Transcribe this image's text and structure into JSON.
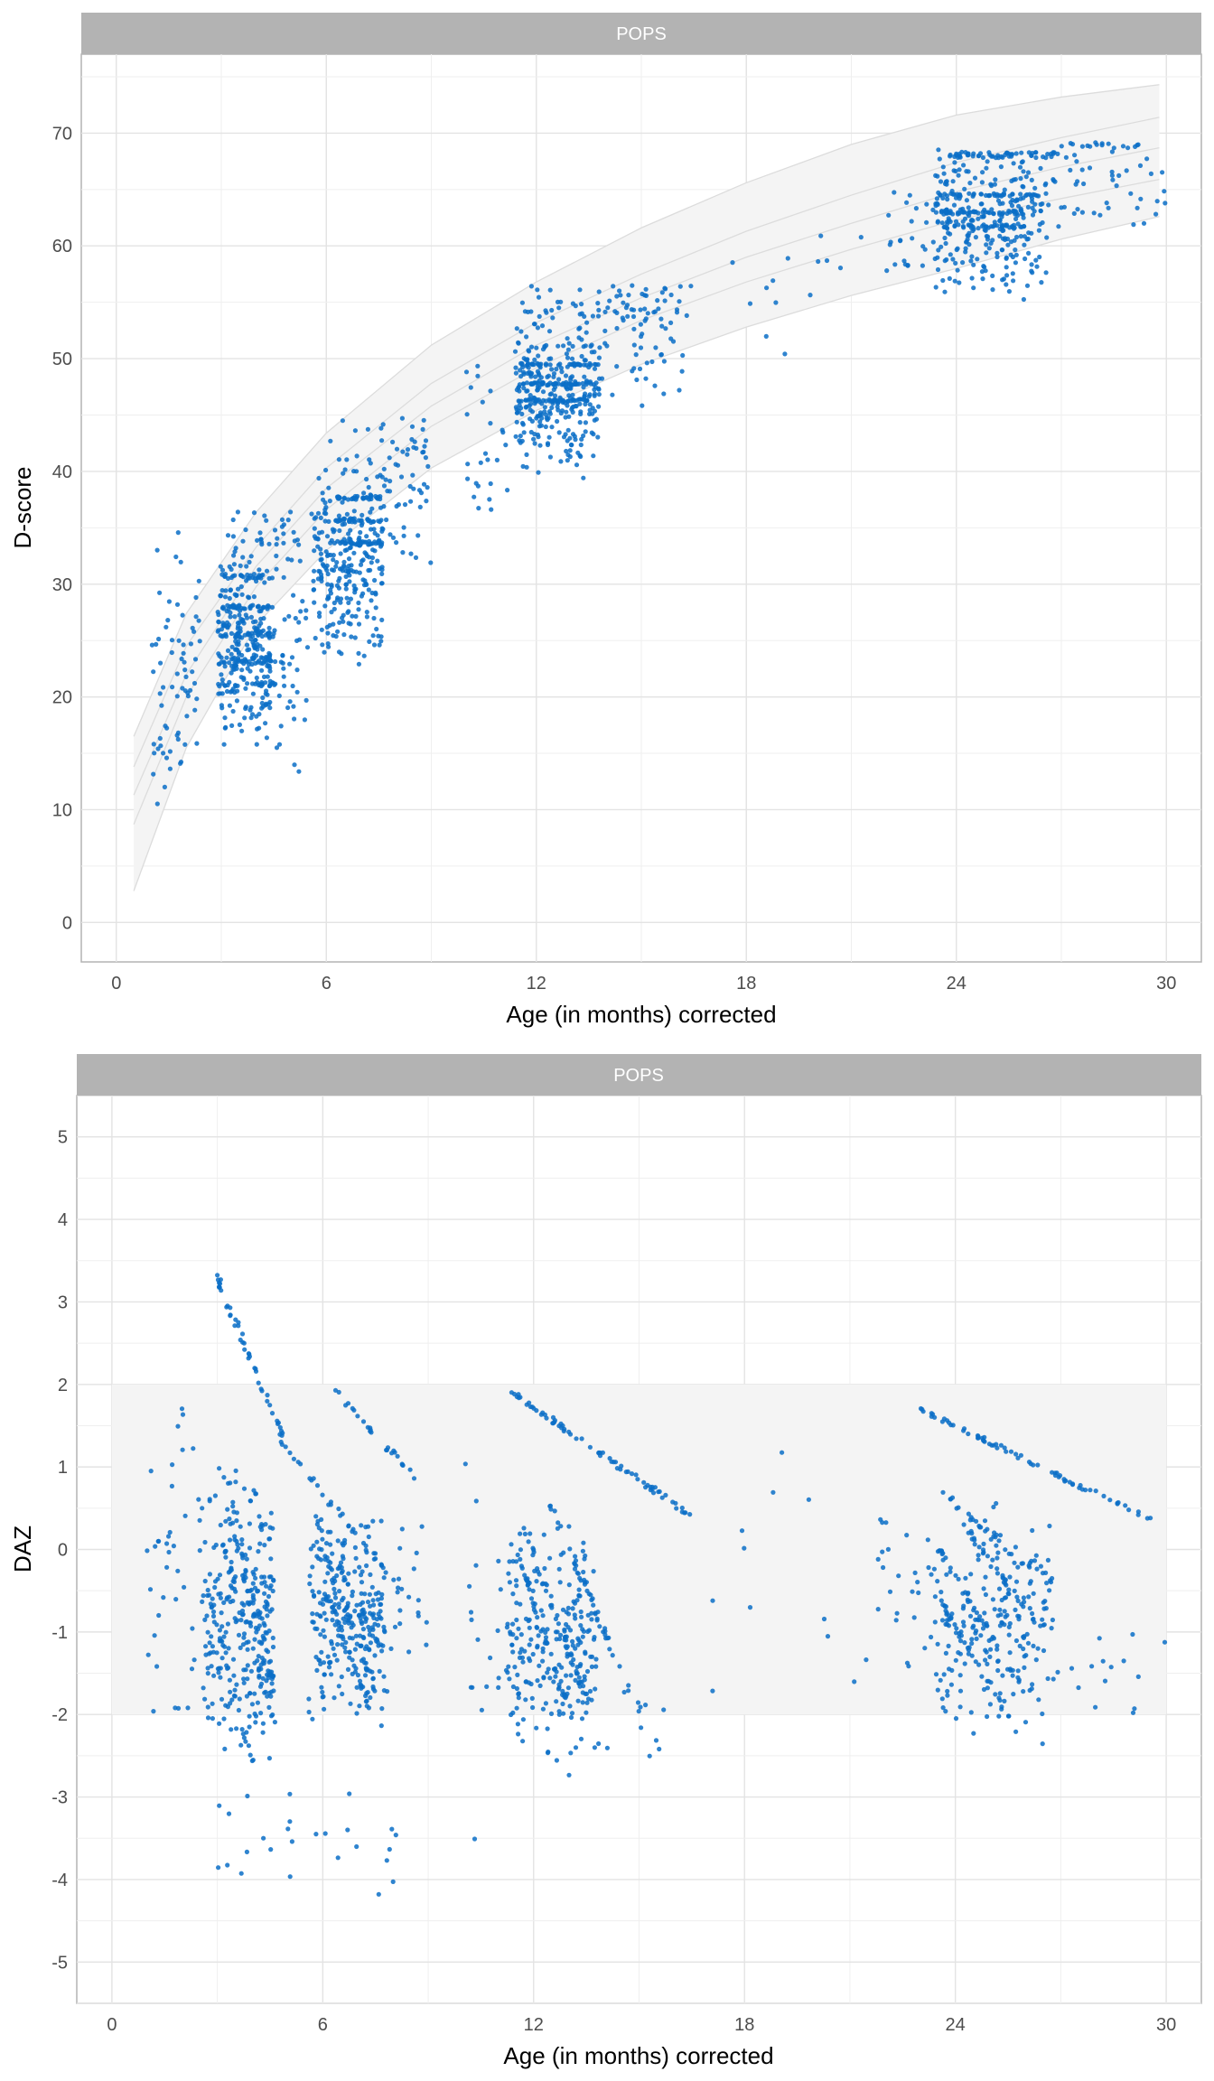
{
  "chart_data": [
    {
      "type": "scatter",
      "strip_label": "POPS",
      "xlabel": "Age (in months) corrected",
      "ylabel": "D-score",
      "xlim": [
        -1,
        31
      ],
      "ylim": [
        -3.5,
        77
      ],
      "x_ticks": [
        0,
        6,
        12,
        18,
        24,
        30
      ],
      "y_ticks": [
        0,
        10,
        20,
        30,
        40,
        50,
        60,
        70
      ],
      "grid": true,
      "point_color": "#0a6fc7",
      "reference_band": {
        "x": [
          0.5,
          2,
          4,
          6,
          9,
          12,
          15,
          18,
          21,
          24,
          27,
          29.8
        ],
        "lines": [
          [
            2.8,
            15.5,
            26.4,
            33.0,
            40.3,
            45.4,
            49.5,
            52.8,
            55.6,
            58.0,
            60.6,
            62.6
          ],
          [
            8.7,
            20.0,
            29.8,
            36.6,
            44.0,
            49.2,
            53.4,
            56.8,
            59.7,
            62.3,
            64.2,
            65.9
          ],
          [
            11.3,
            22.0,
            31.6,
            38.5,
            45.8,
            51.2,
            55.4,
            59.0,
            62.0,
            64.8,
            67.0,
            68.7
          ],
          [
            13.8,
            24.5,
            33.3,
            40.3,
            47.8,
            53.2,
            57.5,
            61.3,
            64.5,
            67.4,
            69.6,
            71.4
          ],
          [
            16.5,
            27.4,
            36.4,
            43.4,
            51.2,
            56.8,
            61.6,
            65.6,
            69.0,
            71.6,
            73.2,
            74.3
          ]
        ]
      },
      "clusters": [
        {
          "x": [
            1.0,
            2.4
          ],
          "y": [
            7,
            35
          ],
          "n": 70
        },
        {
          "x": [
            2.9,
            4.4
          ],
          "y": [
            15,
            34
          ],
          "n": 260
        },
        {
          "x": [
            4.5,
            5.5
          ],
          "y": [
            11,
            38
          ],
          "n": 45
        },
        {
          "x": [
            5.6,
            7.6
          ],
          "y": [
            22,
            41
          ],
          "n": 260
        },
        {
          "x": [
            7.6,
            9.0
          ],
          "y": [
            30,
            46
          ],
          "n": 40
        },
        {
          "x": [
            10.0,
            11.2
          ],
          "y": [
            33,
            50
          ],
          "n": 25
        },
        {
          "x": [
            11.4,
            13.8
          ],
          "y": [
            39,
            55
          ],
          "n": 300
        },
        {
          "x": [
            13.8,
            16.2
          ],
          "y": [
            45,
            57
          ],
          "n": 45
        },
        {
          "x": [
            17.2,
            21.5
          ],
          "y": [
            50,
            65
          ],
          "n": 14
        },
        {
          "x": [
            22.0,
            23.4
          ],
          "y": [
            57,
            66
          ],
          "n": 25
        },
        {
          "x": [
            23.4,
            26.6
          ],
          "y": [
            55,
            69
          ],
          "n": 280
        },
        {
          "x": [
            26.6,
            30.0
          ],
          "y": [
            60,
            70
          ],
          "n": 45
        }
      ],
      "bands": [
        {
          "x": [
            3.0,
            6.0
          ],
          "y": [
            33.5,
            36.5
          ],
          "n": 30
        },
        {
          "x": [
            3.0,
            4.5
          ],
          "y": [
            30.5,
            30.9
          ],
          "n": 25
        },
        {
          "x": [
            3.0,
            4.5
          ],
          "y": [
            27.8,
            28.2
          ],
          "n": 25
        },
        {
          "x": [
            3.0,
            4.5
          ],
          "y": [
            25.3,
            25.7
          ],
          "n": 25
        },
        {
          "x": [
            2.8,
            4.6
          ],
          "y": [
            23.0,
            23.5
          ],
          "n": 25
        },
        {
          "x": [
            3.0,
            4.6
          ],
          "y": [
            20.8,
            21.3
          ],
          "n": 20
        },
        {
          "x": [
            6.0,
            9.0
          ],
          "y": [
            40.0,
            45.0
          ],
          "n": 30
        },
        {
          "x": [
            6.2,
            7.6
          ],
          "y": [
            37.5,
            37.8
          ],
          "n": 30
        },
        {
          "x": [
            6.0,
            7.6
          ],
          "y": [
            35.5,
            35.8
          ],
          "n": 30
        },
        {
          "x": [
            6.0,
            7.6
          ],
          "y": [
            33.5,
            33.8
          ],
          "n": 30
        },
        {
          "x": [
            11.5,
            16.5
          ],
          "y": [
            53.5,
            56.5
          ],
          "n": 60
        },
        {
          "x": [
            11.5,
            13.8
          ],
          "y": [
            49.4,
            49.6
          ],
          "n": 35
        },
        {
          "x": [
            11.5,
            13.5
          ],
          "y": [
            47.7,
            47.9
          ],
          "n": 35
        },
        {
          "x": [
            11.5,
            13.5
          ],
          "y": [
            46.2,
            46.4
          ],
          "n": 35
        },
        {
          "x": [
            23.5,
            27.0
          ],
          "y": [
            67.8,
            68.3
          ],
          "n": 50
        },
        {
          "x": [
            27.0,
            29.6
          ],
          "y": [
            68.5,
            69.2
          ],
          "n": 15
        },
        {
          "x": [
            23.5,
            26.5
          ],
          "y": [
            64.4,
            64.7
          ],
          "n": 35
        },
        {
          "x": [
            23.5,
            26.0
          ],
          "y": [
            62.8,
            63.1
          ],
          "n": 35
        },
        {
          "x": [
            23.5,
            26.0
          ],
          "y": [
            61.6,
            61.9
          ],
          "n": 30
        }
      ]
    },
    {
      "type": "scatter",
      "strip_label": "POPS",
      "xlabel": "Age (in months) corrected",
      "ylabel": "DAZ",
      "xlim": [
        -1,
        31
      ],
      "ylim": [
        -5.5,
        5.5
      ],
      "x_ticks": [
        0,
        6,
        12,
        18,
        24,
        30
      ],
      "y_ticks": [
        -5,
        -4,
        -3,
        -2,
        -1,
        0,
        1,
        2,
        3,
        4,
        5
      ],
      "grid": true,
      "point_color": "#0a6fc7",
      "reference_band": {
        "x": [
          0,
          30
        ],
        "y": [
          -2,
          2
        ]
      },
      "clusters": [
        {
          "x": [
            1.0,
            2.6
          ],
          "y": [
            -2.4,
            1.9
          ],
          "n": 40
        },
        {
          "x": [
            2.6,
            4.6
          ],
          "y": [
            -2.6,
            1.0
          ],
          "n": 240
        },
        {
          "x": [
            2.8,
            5.5
          ],
          "y": [
            -4.4,
            -2.5
          ],
          "n": 14
        },
        {
          "x": [
            5.6,
            7.8
          ],
          "y": [
            -2.2,
            0.6
          ],
          "n": 230
        },
        {
          "x": [
            7.6,
            9.0
          ],
          "y": [
            -1.9,
            0.4
          ],
          "n": 20
        },
        {
          "x": [
            5.8,
            8.2
          ],
          "y": [
            -4.4,
            -2.5
          ],
          "n": 12
        },
        {
          "x": [
            10.0,
            11.2
          ],
          "y": [
            -3.7,
            1.5
          ],
          "n": 18
        },
        {
          "x": [
            11.2,
            13.8
          ],
          "y": [
            -2.8,
            0.4
          ],
          "n": 230
        },
        {
          "x": [
            13.8,
            16.0
          ],
          "y": [
            -2.8,
            -1.5
          ],
          "n": 12
        },
        {
          "x": [
            17.0,
            21.5
          ],
          "y": [
            -2.5,
            1.3
          ],
          "n": 12
        },
        {
          "x": [
            21.8,
            23.4
          ],
          "y": [
            -1.7,
            1.0
          ],
          "n": 25
        },
        {
          "x": [
            23.4,
            26.8
          ],
          "y": [
            -2.5,
            0.7
          ],
          "n": 220
        },
        {
          "x": [
            26.8,
            30.0
          ],
          "y": [
            -2.2,
            -0.6
          ],
          "n": 15
        }
      ],
      "streaks": [
        {
          "x0": 3.0,
          "y0": 3.3,
          "x1": 5.0,
          "y1": 1.2,
          "n": 45
        },
        {
          "x0": 3.0,
          "y0": 0.3,
          "x1": 4.6,
          "y1": -2.1,
          "n": 30
        },
        {
          "x0": 3.0,
          "y0": 1.0,
          "x1": 4.6,
          "y1": -1.8,
          "n": 30
        },
        {
          "x0": 3.2,
          "y0": 0.9,
          "x1": 4.6,
          "y1": -1.6,
          "n": 30
        },
        {
          "x0": 2.8,
          "y0": -0.6,
          "x1": 4.0,
          "y1": -2.6,
          "n": 25
        },
        {
          "x0": 4.8,
          "y0": 1.3,
          "x1": 8.6,
          "y1": -0.7,
          "n": 30
        },
        {
          "x0": 6.2,
          "y0": 2.0,
          "x1": 8.8,
          "y1": 0.8,
          "n": 25
        },
        {
          "x0": 5.8,
          "y0": 0.3,
          "x1": 7.8,
          "y1": -1.3,
          "n": 30
        },
        {
          "x0": 6.0,
          "y0": 0.0,
          "x1": 7.6,
          "y1": -1.8,
          "n": 30
        },
        {
          "x0": 6.0,
          "y0": -0.4,
          "x1": 7.4,
          "y1": -2.0,
          "n": 30
        },
        {
          "x0": 11.4,
          "y0": 1.9,
          "x1": 16.5,
          "y1": 0.4,
          "n": 70
        },
        {
          "x0": 12.2,
          "y0": 0.8,
          "x1": 14.8,
          "y1": -1.8,
          "n": 40
        },
        {
          "x0": 11.6,
          "y0": 0.4,
          "x1": 13.6,
          "y1": -1.9,
          "n": 40
        },
        {
          "x0": 11.6,
          "y0": -0.1,
          "x1": 13.2,
          "y1": -2.2,
          "n": 35
        },
        {
          "x0": 23.0,
          "y0": 1.7,
          "x1": 29.8,
          "y1": 0.3,
          "n": 70
        },
        {
          "x0": 23.6,
          "y0": 0.7,
          "x1": 26.0,
          "y1": -0.2,
          "n": 20
        },
        {
          "x0": 24.2,
          "y0": 0.3,
          "x1": 26.5,
          "y1": -1.0,
          "n": 25
        },
        {
          "x0": 23.4,
          "y0": 0.1,
          "x1": 25.8,
          "y1": -1.6,
          "n": 30
        },
        {
          "x0": 23.4,
          "y0": -0.5,
          "x1": 25.6,
          "y1": -2.1,
          "n": 30
        }
      ]
    }
  ]
}
